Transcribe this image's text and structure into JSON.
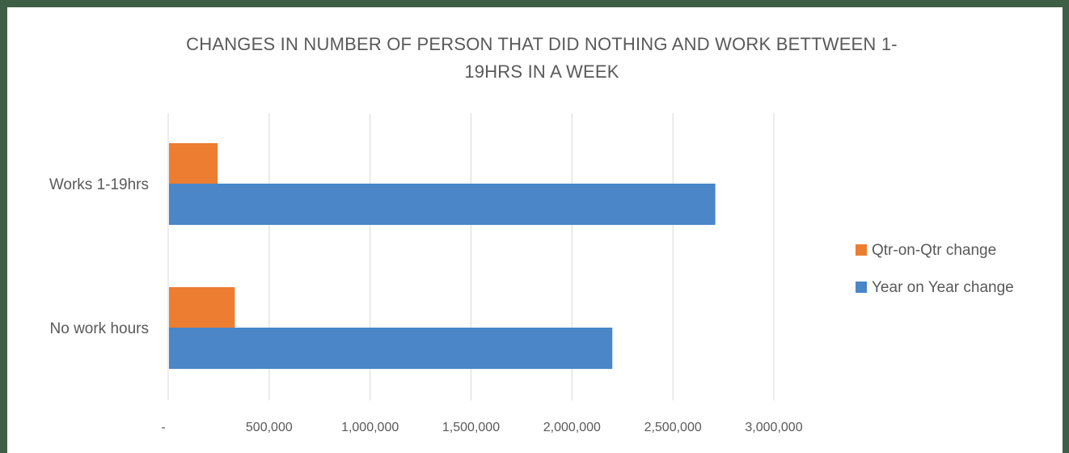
{
  "chart_data": {
    "type": "bar",
    "orientation": "horizontal",
    "title": "CHANGES IN NUMBER OF PERSON THAT DID NOTHING AND WORK BETTWEEN 1-19HRS IN A WEEK",
    "title_lines": [
      "CHANGES IN NUMBER OF PERSON THAT DID NOTHING AND WORK BETTWEEN 1-",
      "19HRS IN A WEEK"
    ],
    "categories": [
      "Works 1-19hrs",
      "No work hours"
    ],
    "series": [
      {
        "name": "Qtr-on-Qtr change",
        "color": "#ED7D31",
        "values": [
          245000,
          330000
        ]
      },
      {
        "name": "Year on Year change",
        "color": "#4A86C8",
        "values": [
          2710000,
          2200000
        ]
      }
    ],
    "xlim": [
      0,
      3000000
    ],
    "xticks": [
      0,
      500000,
      1000000,
      1500000,
      2000000,
      2500000,
      3000000
    ],
    "xtick_labels": [
      "-",
      "500,000",
      "1,000,000",
      "1,500,000",
      "2,000,000",
      "2,500,000",
      "3,000,000"
    ],
    "grid": true,
    "legend_position": "right"
  }
}
